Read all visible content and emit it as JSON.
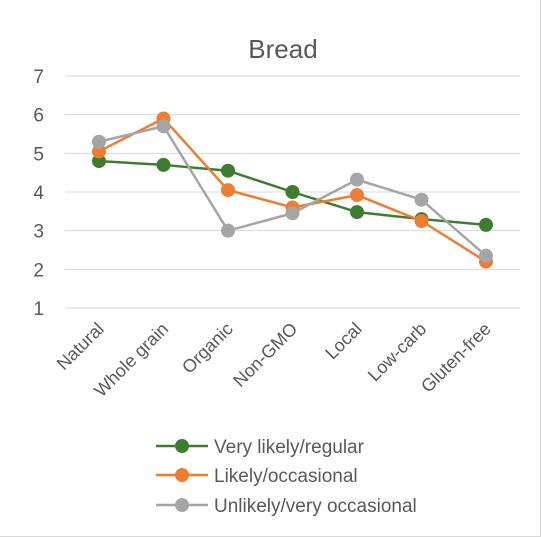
{
  "chart_data": {
    "type": "line",
    "title": "Bread",
    "xlabel": "",
    "ylabel": "",
    "ylim": [
      1,
      7
    ],
    "yticks": [
      1,
      2,
      3,
      4,
      5,
      6,
      7
    ],
    "grid": true,
    "legend_position": "bottom",
    "categories": [
      "Natural",
      "Whole grain",
      "Organic",
      "Non-GMO",
      "Local",
      "Low-carb",
      "Gluten-free"
    ],
    "series": [
      {
        "name": "Very likely/regular",
        "color": "#3e7d2f",
        "values": [
          4.8,
          4.7,
          4.55,
          4.0,
          3.48,
          3.3,
          3.15
        ]
      },
      {
        "name": "Likely/occasional",
        "color": "#ed7d31",
        "values": [
          5.05,
          5.9,
          4.05,
          3.6,
          3.92,
          3.25,
          2.2
        ]
      },
      {
        "name": "Unlikely/very occasional",
        "color": "#a5a5a5",
        "values": [
          5.3,
          5.7,
          3.0,
          3.45,
          4.32,
          3.8,
          2.35
        ]
      }
    ]
  }
}
